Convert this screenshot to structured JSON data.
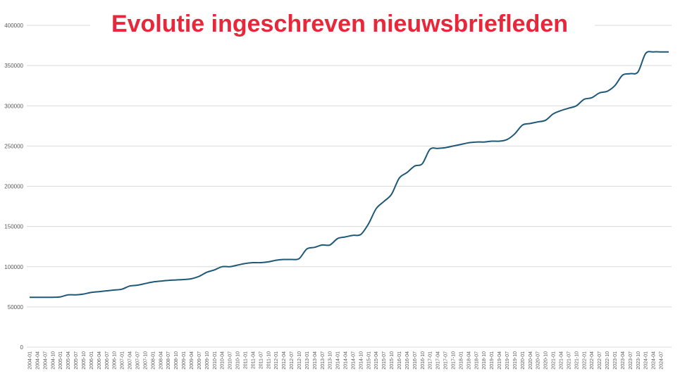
{
  "colors": {
    "title": "#e8273a",
    "line": "#1f5877",
    "grid": "#d9d9d9",
    "axis_text": "#595959"
  },
  "chart_data": {
    "type": "line",
    "title": "Evolutie ingeschreven nieuwsbriefleden",
    "xlabel": "",
    "ylabel": "",
    "ylim": [
      0,
      400000
    ],
    "grid": true,
    "legend": "none",
    "y_ticks": [
      "0",
      "50000",
      "100000",
      "150000",
      "200000",
      "250000",
      "300000",
      "350000",
      "400000"
    ],
    "x_tick_labels": [
      "2004-01",
      "2004-04",
      "2004-07",
      "2004-10",
      "2005-01",
      "2005-04",
      "2005-07",
      "2005-10",
      "2006-01",
      "2006-04",
      "2006-07",
      "2006-10",
      "2007-01",
      "2007-04",
      "2007-07",
      "2007-10",
      "2008-01",
      "2008-04",
      "2008-07",
      "2008-10",
      "2009-01",
      "2009-04",
      "2009-07",
      "2009-10",
      "2010-01",
      "2010-04",
      "2010-07",
      "2010-10",
      "2011-01",
      "2011-04",
      "2011-07",
      "2011-10",
      "2012-01",
      "2012-04",
      "2012-07",
      "2012-10",
      "2013-01",
      "2013-04",
      "2013-07",
      "2013-10",
      "2014-01",
      "2014-04",
      "2014-07",
      "2014-10",
      "2015-01",
      "2015-04",
      "2015-07",
      "2015-10",
      "2016-01",
      "2016-04",
      "2016-07",
      "2016-10",
      "2017-01",
      "2017-04",
      "2017-07",
      "2017-10",
      "2018-01",
      "2018-04",
      "2018-07",
      "2018-10",
      "2019-01",
      "2019-04",
      "2019-07",
      "2019-10",
      "2020-01",
      "2020-04",
      "2020-07",
      "2020-10",
      "2021-01",
      "2021-04",
      "2021-07",
      "2021-10",
      "2022-01",
      "2022-04",
      "2022-07",
      "2022-10",
      "2023-01",
      "2023-04",
      "2023-07",
      "2023-10",
      "2024-01",
      "2024-04",
      "2024-07"
    ],
    "series": [
      {
        "x": [
          "2004-01",
          "2004-04",
          "2004-07",
          "2004-10",
          "2005-01",
          "2005-04",
          "2005-07",
          "2005-10",
          "2006-01",
          "2006-04",
          "2006-07",
          "2006-10",
          "2007-01",
          "2007-04",
          "2007-07",
          "2007-10",
          "2008-01",
          "2008-04",
          "2008-07",
          "2008-10",
          "2009-01",
          "2009-04",
          "2009-07",
          "2009-10",
          "2010-01",
          "2010-04",
          "2010-07",
          "2010-10",
          "2011-01",
          "2011-04",
          "2011-07",
          "2011-10",
          "2012-01",
          "2012-04",
          "2012-07",
          "2012-10",
          "2013-01",
          "2013-04",
          "2013-07",
          "2013-10",
          "2014-01",
          "2014-04",
          "2014-07",
          "2014-10",
          "2015-01",
          "2015-04",
          "2015-07",
          "2015-10",
          "2016-01",
          "2016-04",
          "2016-07",
          "2016-10",
          "2017-01",
          "2017-04",
          "2017-07",
          "2017-10",
          "2018-01",
          "2018-04",
          "2018-07",
          "2018-10",
          "2019-01",
          "2019-04",
          "2019-07",
          "2019-10",
          "2020-01",
          "2020-04",
          "2020-07",
          "2020-10",
          "2021-01",
          "2021-04",
          "2021-07",
          "2021-10",
          "2022-01",
          "2022-04",
          "2022-07",
          "2022-10",
          "2023-01",
          "2023-04",
          "2023-07",
          "2023-10",
          "2024-01",
          "2024-04",
          "2024-07",
          "2024-10"
        ],
        "values": [
          62000,
          62000,
          62000,
          62000,
          62500,
          65000,
          65000,
          66000,
          68000,
          69000,
          70000,
          71000,
          72000,
          76000,
          77000,
          79000,
          81000,
          82000,
          83000,
          83500,
          84000,
          85000,
          88000,
          93000,
          96000,
          100000,
          100000,
          102000,
          104000,
          105000,
          105000,
          106000,
          108000,
          109000,
          109000,
          110000,
          122000,
          124000,
          127000,
          127000,
          135000,
          137000,
          139000,
          140000,
          153000,
          172000,
          181000,
          190000,
          210000,
          217000,
          225000,
          228000,
          246000,
          247000,
          248000,
          250000,
          252000,
          254000,
          255000,
          255000,
          256000,
          256000,
          258000,
          265000,
          276000,
          278000,
          280000,
          282000,
          290000,
          294000,
          297000,
          300000,
          308000,
          310000,
          316000,
          318000,
          325000,
          338000,
          340000,
          342000,
          365000,
          367000,
          367000,
          367000
        ]
      }
    ]
  }
}
